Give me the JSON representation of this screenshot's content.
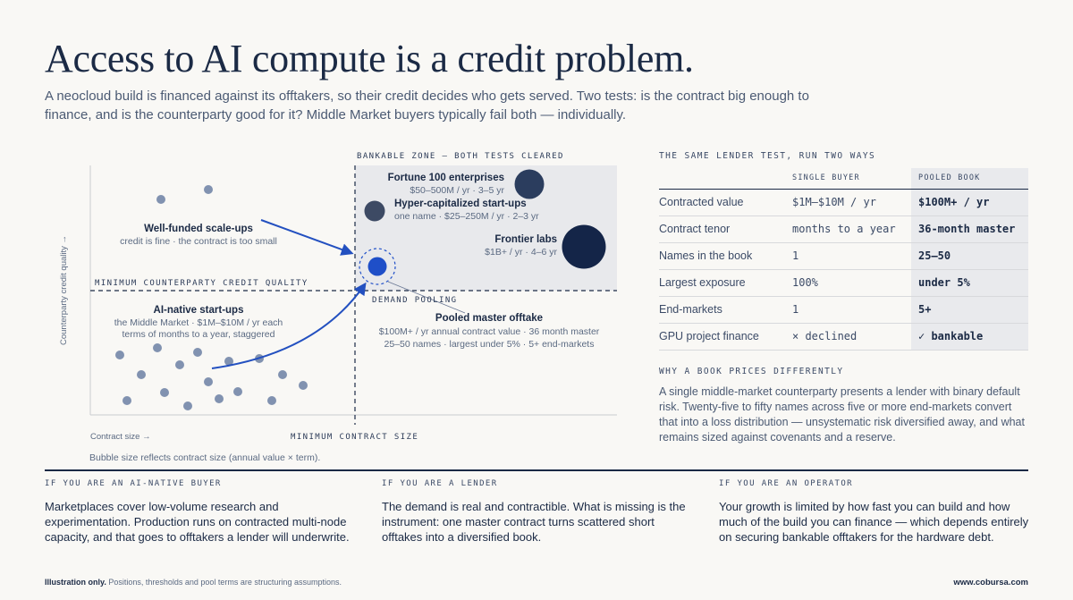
{
  "header": {
    "title": "Access to AI compute is a credit problem.",
    "subtitle": "A neocloud build is financed against its offtakers, so their credit decides who gets served. Two tests: is the contract big enough to finance, and is the counterparty good for it? Middle Market buyers typically fail both — individually."
  },
  "chart": {
    "zone_label": "BANKABLE ZONE — BOTH TESTS CLEARED",
    "min_credit_label": "MINIMUM COUNTERPARTY CREDIT QUALITY",
    "min_contract_label": "MINIMUM CONTRACT SIZE",
    "y_axis_label": "Counterparty credit quality →",
    "x_axis_label": "Contract size →",
    "demand_pooling_label": "DEMAND POOLING",
    "bubble_note": "Bubble size reflects contract size (annual value × term).",
    "groups": {
      "fortune": {
        "name": "Fortune 100 enterprises",
        "detail": "$50–500M / yr · 3–5 yr"
      },
      "hypercap": {
        "name": "Hyper-capitalized start-ups",
        "detail": "one name · $25–250M / yr · 2–3 yr"
      },
      "frontier": {
        "name": "Frontier labs",
        "detail": "$1B+ / yr · 4–6 yr"
      },
      "scaleups": {
        "name": "Well-funded scale-ups",
        "detail": "credit is fine · the contract is too small"
      },
      "ainative": {
        "name": "AI-native start-ups",
        "detail1": "the Middle Market · $1M–$10M / yr each",
        "detail2": "terms of months to a year, staggered"
      },
      "pooled": {
        "name": "Pooled master offtake",
        "detail1": "$100M+ / yr annual contract value · 36 month master",
        "detail2": "25–50 names · largest under 5% · 5+ end-markets"
      }
    },
    "colors": {
      "small_dot": "#8192b0",
      "fortune": "#2b3d5e",
      "hypercap": "#3d4a64",
      "frontier": "#142548",
      "pooled": "#1f4fc8",
      "arrow": "#2350c0",
      "zone": "#e8e9ec"
    }
  },
  "table": {
    "kicker": "THE SAME LENDER TEST, RUN TWO WAYS",
    "col_single": "SINGLE BUYER",
    "col_pooled": "POOLED BOOK",
    "rows": [
      {
        "metric": "Contracted value",
        "single": "$1M–$10M / yr",
        "pooled": "$100M+ / yr"
      },
      {
        "metric": "Contract tenor",
        "single": "months to a year",
        "pooled": "36-month master"
      },
      {
        "metric": "Names in the book",
        "single": "1",
        "pooled": "25–50"
      },
      {
        "metric": "Largest exposure",
        "single": "100%",
        "pooled": "under 5%"
      },
      {
        "metric": "End-markets",
        "single": "1",
        "pooled": "5+"
      },
      {
        "metric": "GPU project finance",
        "single": "×  declined",
        "pooled": "✓  bankable"
      }
    ]
  },
  "why": {
    "kicker": "WHY A BOOK PRICES DIFFERENTLY",
    "text": "A single middle-market counterparty presents a lender with binary default risk. Twenty-five to fifty names across five or more end-markets convert that into a loss distribution — unsystematic risk diversified away, and what remains sized against covenants and a reserve."
  },
  "audiences": [
    {
      "kicker": "IF YOU ARE AN AI-NATIVE BUYER",
      "text": "Marketplaces cover low-volume research and experimentation. Production runs on contracted multi-node capacity, and that goes to offtakers a lender will underwrite."
    },
    {
      "kicker": "IF YOU ARE A LENDER",
      "text": "The demand is real and contractible. What is missing is the instrument: one master contract turns scattered short offtakes into a diversified book."
    },
    {
      "kicker": "IF YOU ARE AN OPERATOR",
      "text": "Your growth is limited by how fast you can build and how much of the build you can finance — which depends entirely on securing bankable offtakers for the hardware debt."
    }
  ],
  "footer": {
    "note_bold": "Illustration only.",
    "note_rest": " Positions, thresholds and pool terms are structuring assumptions.",
    "url": "www.cobursa.com"
  }
}
